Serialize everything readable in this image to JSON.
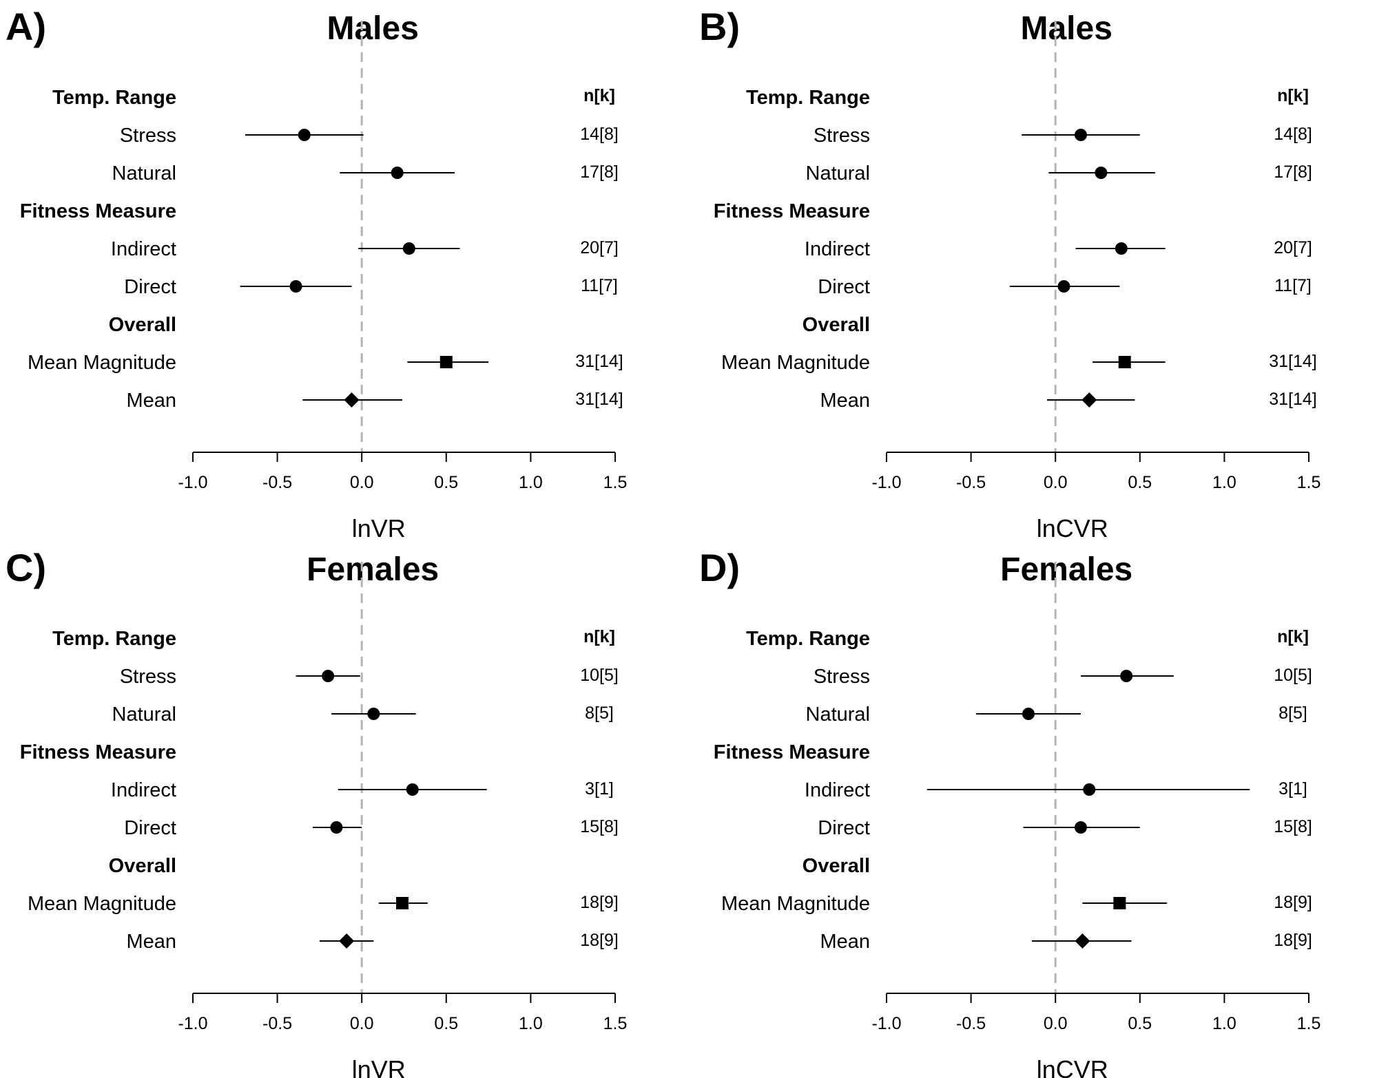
{
  "chart_data": [
    {
      "panel": "A)",
      "type": "scatter",
      "title": "Males",
      "xlabel": "lnVR",
      "xlim": [
        -1.0,
        1.5
      ],
      "xticks": [
        "-1.0",
        "-0.5",
        "0.0",
        "0.5",
        "1.0",
        "1.5"
      ],
      "reference_line": 0,
      "n_header": "n[k]",
      "rows": [
        {
          "label": "Temp. Range",
          "group": true
        },
        {
          "label": "Stress",
          "estimate": -0.34,
          "lower": -0.69,
          "upper": 0.01,
          "marker": "circle",
          "n": "14[8]"
        },
        {
          "label": "Natural",
          "estimate": 0.21,
          "lower": -0.13,
          "upper": 0.55,
          "marker": "circle",
          "n": "17[8]"
        },
        {
          "label": "Fitness Measure",
          "group": true
        },
        {
          "label": "Indirect",
          "estimate": 0.28,
          "lower": -0.02,
          "upper": 0.58,
          "marker": "circle",
          "n": "20[7]"
        },
        {
          "label": "Direct",
          "estimate": -0.39,
          "lower": -0.72,
          "upper": -0.06,
          "marker": "circle",
          "n": "11[7]"
        },
        {
          "label": "Overall",
          "group": true
        },
        {
          "label": "Mean Magnitude",
          "estimate": 0.5,
          "lower": 0.27,
          "upper": 0.75,
          "marker": "square",
          "n": "31[14]"
        },
        {
          "label": "Mean",
          "estimate": -0.06,
          "lower": -0.35,
          "upper": 0.24,
          "marker": "diamond",
          "n": "31[14]"
        }
      ]
    },
    {
      "panel": "B)",
      "type": "scatter",
      "title": "Males",
      "xlabel": "lnCVR",
      "xlim": [
        -1.0,
        1.5
      ],
      "xticks": [
        "-1.0",
        "-0.5",
        "0.0",
        "0.5",
        "1.0",
        "1.5"
      ],
      "reference_line": 0,
      "n_header": "n[k]",
      "rows": [
        {
          "label": "Temp. Range",
          "group": true
        },
        {
          "label": "Stress",
          "estimate": 0.15,
          "lower": -0.2,
          "upper": 0.5,
          "marker": "circle",
          "n": "14[8]"
        },
        {
          "label": "Natural",
          "estimate": 0.27,
          "lower": -0.04,
          "upper": 0.59,
          "marker": "circle",
          "n": "17[8]"
        },
        {
          "label": "Fitness Measure",
          "group": true
        },
        {
          "label": "Indirect",
          "estimate": 0.39,
          "lower": 0.12,
          "upper": 0.65,
          "marker": "circle",
          "n": "20[7]"
        },
        {
          "label": "Direct",
          "estimate": 0.05,
          "lower": -0.27,
          "upper": 0.38,
          "marker": "circle",
          "n": "11[7]"
        },
        {
          "label": "Overall",
          "group": true
        },
        {
          "label": "Mean Magnitude",
          "estimate": 0.41,
          "lower": 0.22,
          "upper": 0.65,
          "marker": "square",
          "n": "31[14]"
        },
        {
          "label": "Mean",
          "estimate": 0.2,
          "lower": -0.05,
          "upper": 0.47,
          "marker": "diamond",
          "n": "31[14]"
        }
      ]
    },
    {
      "panel": "C)",
      "type": "scatter",
      "title": "Females",
      "xlabel": "lnVR",
      "xlim": [
        -1.0,
        1.5
      ],
      "xticks": [
        "-1.0",
        "-0.5",
        "0.0",
        "0.5",
        "1.0",
        "1.5"
      ],
      "reference_line": 0,
      "n_header": "n[k]",
      "rows": [
        {
          "label": "Temp. Range",
          "group": true
        },
        {
          "label": "Stress",
          "estimate": -0.2,
          "lower": -0.39,
          "upper": -0.01,
          "marker": "circle",
          "n": "10[5]"
        },
        {
          "label": "Natural",
          "estimate": 0.07,
          "lower": -0.18,
          "upper": 0.32,
          "marker": "circle",
          "n": "8[5]"
        },
        {
          "label": "Fitness Measure",
          "group": true
        },
        {
          "label": "Indirect",
          "estimate": 0.3,
          "lower": -0.14,
          "upper": 0.74,
          "marker": "circle",
          "n": "3[1]"
        },
        {
          "label": "Direct",
          "estimate": -0.15,
          "lower": -0.29,
          "upper": 0.0,
          "marker": "circle",
          "n": "15[8]"
        },
        {
          "label": "Overall",
          "group": true
        },
        {
          "label": "Mean Magnitude",
          "estimate": 0.24,
          "lower": 0.1,
          "upper": 0.39,
          "marker": "square",
          "n": "18[9]"
        },
        {
          "label": "Mean",
          "estimate": -0.09,
          "lower": -0.25,
          "upper": 0.07,
          "marker": "diamond",
          "n": "18[9]"
        }
      ]
    },
    {
      "panel": "D)",
      "type": "scatter",
      "title": "Females",
      "xlabel": "lnCVR",
      "xlim": [
        -1.0,
        1.5
      ],
      "xticks": [
        "-1.0",
        "-0.5",
        "0.0",
        "0.5",
        "1.0",
        "1.5"
      ],
      "reference_line": 0,
      "n_header": "n[k]",
      "rows": [
        {
          "label": "Temp. Range",
          "group": true
        },
        {
          "label": "Stress",
          "estimate": 0.42,
          "lower": 0.15,
          "upper": 0.7,
          "marker": "circle",
          "n": "10[5]"
        },
        {
          "label": "Natural",
          "estimate": -0.16,
          "lower": -0.47,
          "upper": 0.15,
          "marker": "circle",
          "n": "8[5]"
        },
        {
          "label": "Fitness Measure",
          "group": true
        },
        {
          "label": "Indirect",
          "estimate": 0.2,
          "lower": -0.76,
          "upper": 1.15,
          "marker": "circle",
          "n": "3[1]"
        },
        {
          "label": "Direct",
          "estimate": 0.15,
          "lower": -0.19,
          "upper": 0.5,
          "marker": "circle",
          "n": "15[8]"
        },
        {
          "label": "Overall",
          "group": true
        },
        {
          "label": "Mean Magnitude",
          "estimate": 0.38,
          "lower": 0.16,
          "upper": 0.66,
          "marker": "square",
          "n": "18[9]"
        },
        {
          "label": "Mean",
          "estimate": 0.16,
          "lower": -0.14,
          "upper": 0.45,
          "marker": "diamond",
          "n": "18[9]"
        }
      ]
    }
  ]
}
